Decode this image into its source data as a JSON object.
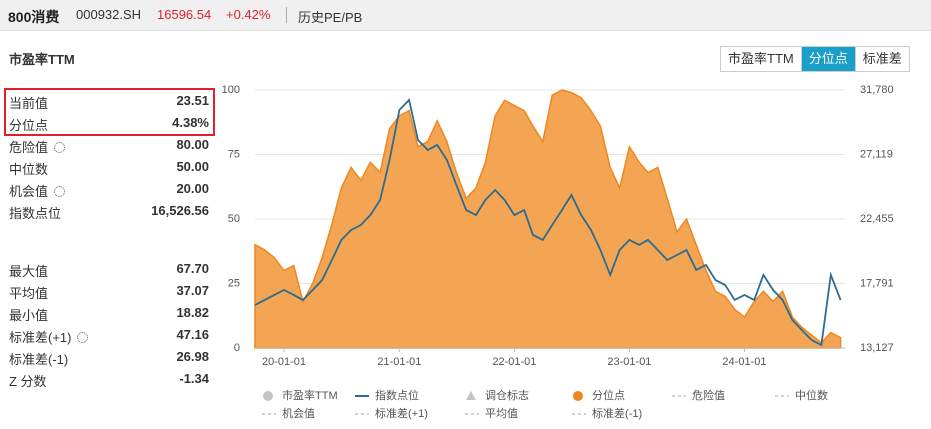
{
  "header": {
    "name": "800消费",
    "code": "000932.SH",
    "price": "16596.54",
    "change": "+0.42%",
    "tab": "历史PE/PB"
  },
  "panel_title": "市盈率TTM",
  "stats_top": [
    {
      "label": "当前值",
      "value": "23.51"
    },
    {
      "label": "分位点",
      "value": "4.38%"
    },
    {
      "label": "危险值",
      "value": "80.00",
      "gear": true
    },
    {
      "label": "中位数",
      "value": "50.00"
    },
    {
      "label": "机会值",
      "value": "20.00",
      "gear": true
    },
    {
      "label": "指数点位",
      "value": "16,526.56"
    }
  ],
  "stats_bottom": [
    {
      "label": "最大值",
      "value": "67.70"
    },
    {
      "label": "平均值",
      "value": "37.07"
    },
    {
      "label": "最小值",
      "value": "18.82"
    },
    {
      "label": "标准差(+1)",
      "value": "47.16",
      "gear": true
    },
    {
      "label": "标准差(-1)",
      "value": "26.98"
    },
    {
      "label": "Z 分数",
      "value": "-1.34"
    }
  ],
  "buttons": [
    "市盈率TTM",
    "分位点",
    "标准差"
  ],
  "active_button": 1,
  "chart_data": {
    "type": "area",
    "x": [
      "19-10-01",
      "19-11-01",
      "19-12-01",
      "20-01-01",
      "20-02-01",
      "20-03-01",
      "20-04-01",
      "20-05-01",
      "20-06-01",
      "20-07-01",
      "20-08-01",
      "20-09-01",
      "20-10-01",
      "20-11-01",
      "20-12-01",
      "21-01-01",
      "21-02-01",
      "21-03-01",
      "21-04-01",
      "21-05-01",
      "21-06-01",
      "21-07-01",
      "21-08-01",
      "21-09-01",
      "21-10-01",
      "21-11-01",
      "21-12-01",
      "22-01-01",
      "22-02-01",
      "22-03-01",
      "22-04-01",
      "22-05-01",
      "22-06-01",
      "22-07-01",
      "22-08-01",
      "22-09-01",
      "22-10-01",
      "22-11-01",
      "22-12-01",
      "23-01-01",
      "23-02-01",
      "23-03-01",
      "23-04-01",
      "23-05-01",
      "23-06-01",
      "23-07-01",
      "23-08-01",
      "23-09-01",
      "23-10-01",
      "23-11-01",
      "23-12-01",
      "24-01-01",
      "24-02-01",
      "24-03-01",
      "24-04-01",
      "24-05-01",
      "24-06-01",
      "24-07-01",
      "24-08-01",
      "24-09-01",
      "24-10-01",
      "24-11-01"
    ],
    "series": [
      {
        "name": "分位点",
        "style": "area",
        "color": "#f0861f",
        "fill": "#f4a553",
        "values": [
          40,
          38,
          35,
          30,
          32,
          18,
          25,
          35,
          48,
          62,
          70,
          65,
          72,
          68,
          85,
          90,
          92,
          78,
          80,
          88,
          80,
          68,
          58,
          62,
          72,
          90,
          96,
          94,
          92,
          86,
          80,
          98,
          100,
          99,
          97,
          92,
          86,
          70,
          62,
          78,
          72,
          68,
          70,
          58,
          45,
          50,
          40,
          30,
          22,
          20,
          15,
          12,
          18,
          22,
          18,
          22,
          12,
          8,
          5,
          2,
          6,
          4
        ]
      },
      {
        "name": "指数点位",
        "style": "line",
        "axis": "y2",
        "color": "#2b6c90",
        "values": [
          16230,
          16600,
          16960,
          17320,
          16960,
          16600,
          17320,
          18040,
          19490,
          20940,
          21660,
          22020,
          22740,
          23830,
          26720,
          30330,
          31060,
          28170,
          27440,
          27810,
          26720,
          24910,
          23100,
          22740,
          23830,
          24550,
          23830,
          22740,
          23100,
          21300,
          20940,
          22020,
          23100,
          24190,
          22740,
          21660,
          20210,
          18410,
          20210,
          20940,
          20580,
          20940,
          20210,
          19490,
          19850,
          20210,
          18770,
          19130,
          18040,
          17680,
          16600,
          16960,
          16600,
          18410,
          17320,
          16600,
          15150,
          14430,
          13700,
          13340,
          18410,
          16600
        ]
      }
    ],
    "inactive_legend": [
      {
        "name": "市盈率TTM",
        "marker": "circle"
      },
      {
        "name": "调仓标志",
        "marker": "triangle"
      },
      {
        "name": "危险值",
        "marker": "dash"
      },
      {
        "name": "中位数",
        "marker": "dash"
      },
      {
        "name": "机会值",
        "marker": "dash"
      },
      {
        "name": "标准差(+1)",
        "marker": "dash"
      },
      {
        "name": "平均值",
        "marker": "dash"
      },
      {
        "name": "标准差(-1)",
        "marker": "dash"
      }
    ],
    "xlim": [
      "19-10-01",
      "24-11-15"
    ],
    "xticks": [
      "20-01-01",
      "21-01-01",
      "22-01-01",
      "23-01-01",
      "24-01-01"
    ],
    "ylim": [
      0,
      100
    ],
    "yticks": [
      0,
      25,
      50,
      75,
      100
    ],
    "y2lim": [
      13127,
      31780
    ],
    "y2ticks": [
      {
        "value": 13127,
        "label": "13,127"
      },
      {
        "value": 17791,
        "label": "17,791"
      },
      {
        "value": 22455,
        "label": "22,455"
      },
      {
        "value": 27119,
        "label": "27,119"
      },
      {
        "value": 31780,
        "label": "31,780"
      }
    ],
    "grid": true
  }
}
